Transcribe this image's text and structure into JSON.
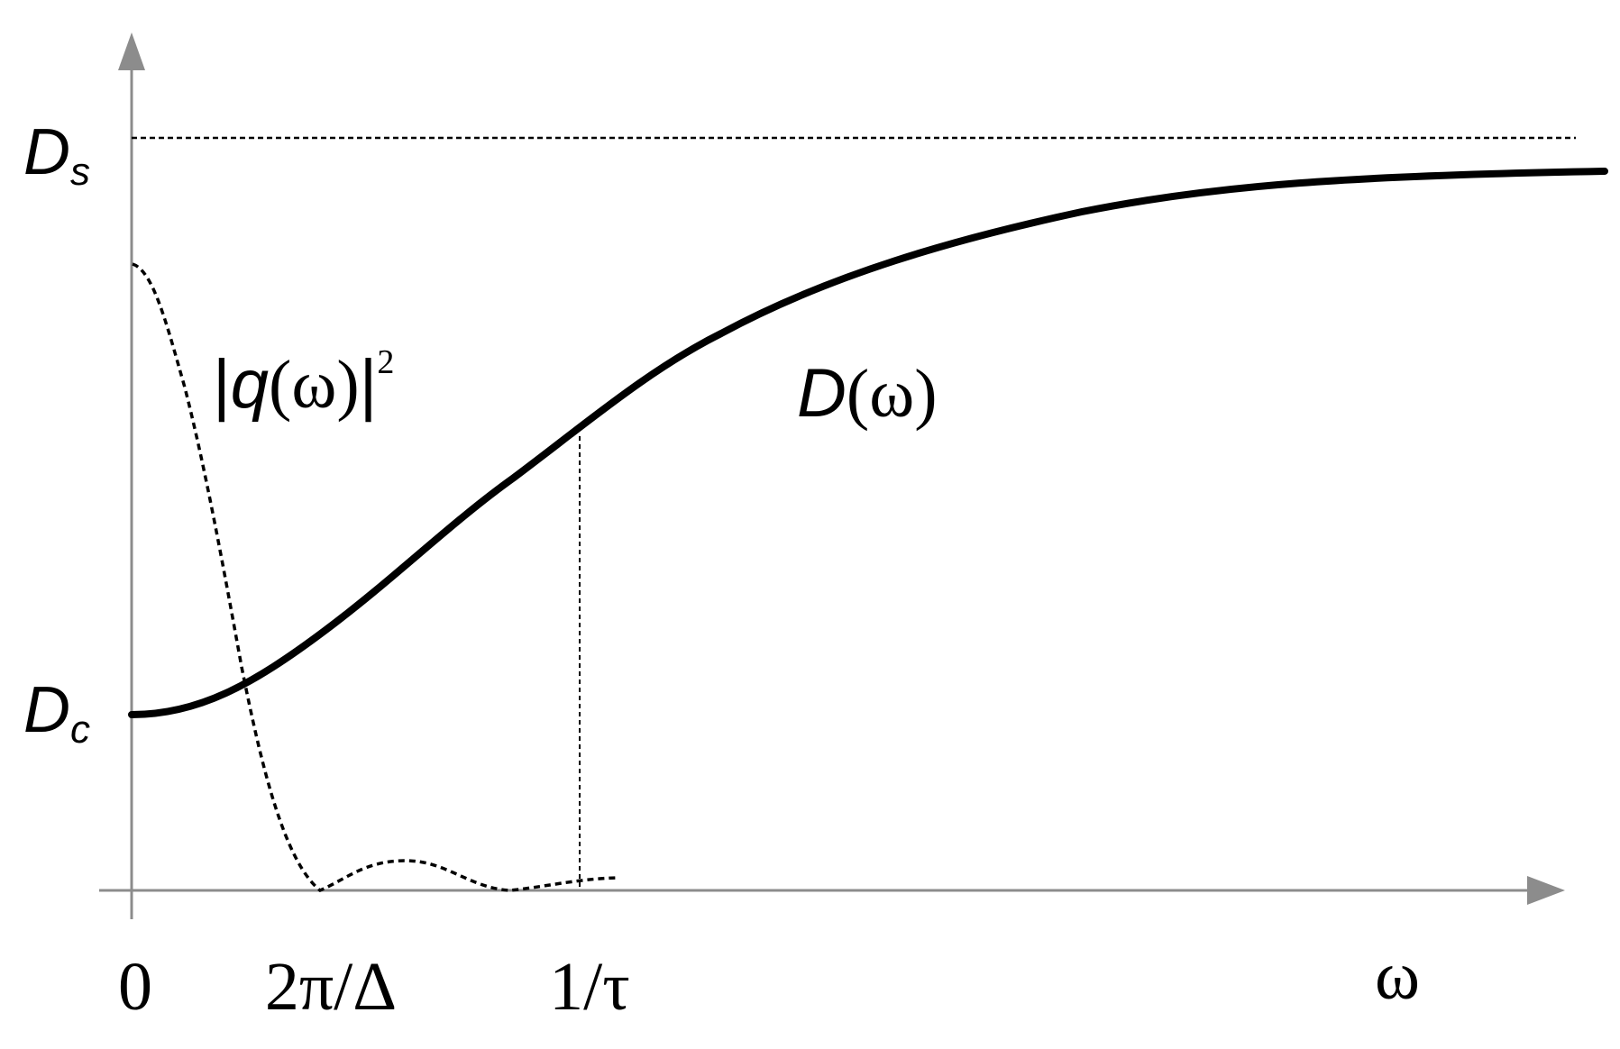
{
  "diagram": {
    "y_axis": {
      "upper_label": {
        "main": "D",
        "subscript": "s"
      },
      "lower_label": {
        "main": "D",
        "subscript": "c"
      }
    },
    "x_axis": {
      "tick_labels": [
        "0",
        "2π/Δ",
        "1/τ"
      ],
      "axis_label": "ω"
    },
    "curves": {
      "d_omega_label": {
        "main": "D",
        "rest": "(ω)"
      },
      "q_omega_label": {
        "bar_left": "|",
        "main": "q",
        "rest": "(ω)",
        "bar_right": "|",
        "superscript": "2"
      }
    },
    "colors": {
      "axis": "#8c8c8c",
      "curve": "#000000",
      "dashed": "#000000",
      "text": "#000000"
    }
  }
}
